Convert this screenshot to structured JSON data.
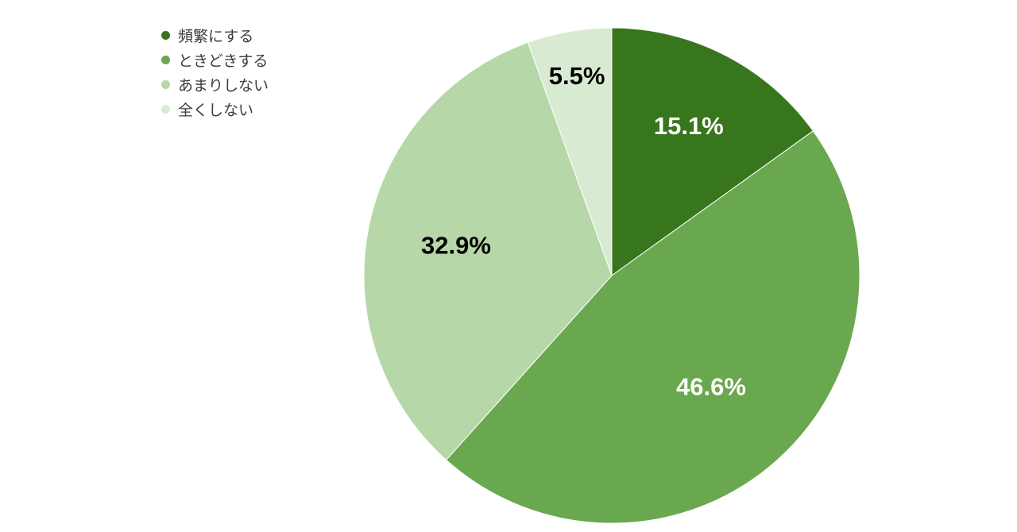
{
  "chart_data": {
    "type": "pie",
    "categories": [
      "頻繁にする",
      "ときどきする",
      "あまりしない",
      "全くしない"
    ],
    "values": [
      15.1,
      46.6,
      32.9,
      5.5
    ],
    "value_labels": [
      "15.1%",
      "46.6%",
      "32.9%",
      "5.5%"
    ],
    "colors": [
      "#38761d",
      "#6aa84f",
      "#b6d7a8",
      "#d9ead3"
    ],
    "label_colors": [
      "#ffffff",
      "#ffffff",
      "#000000",
      "#000000"
    ],
    "start_angle_deg": 0,
    "direction": "clockwise",
    "legend_position": "top-left"
  }
}
